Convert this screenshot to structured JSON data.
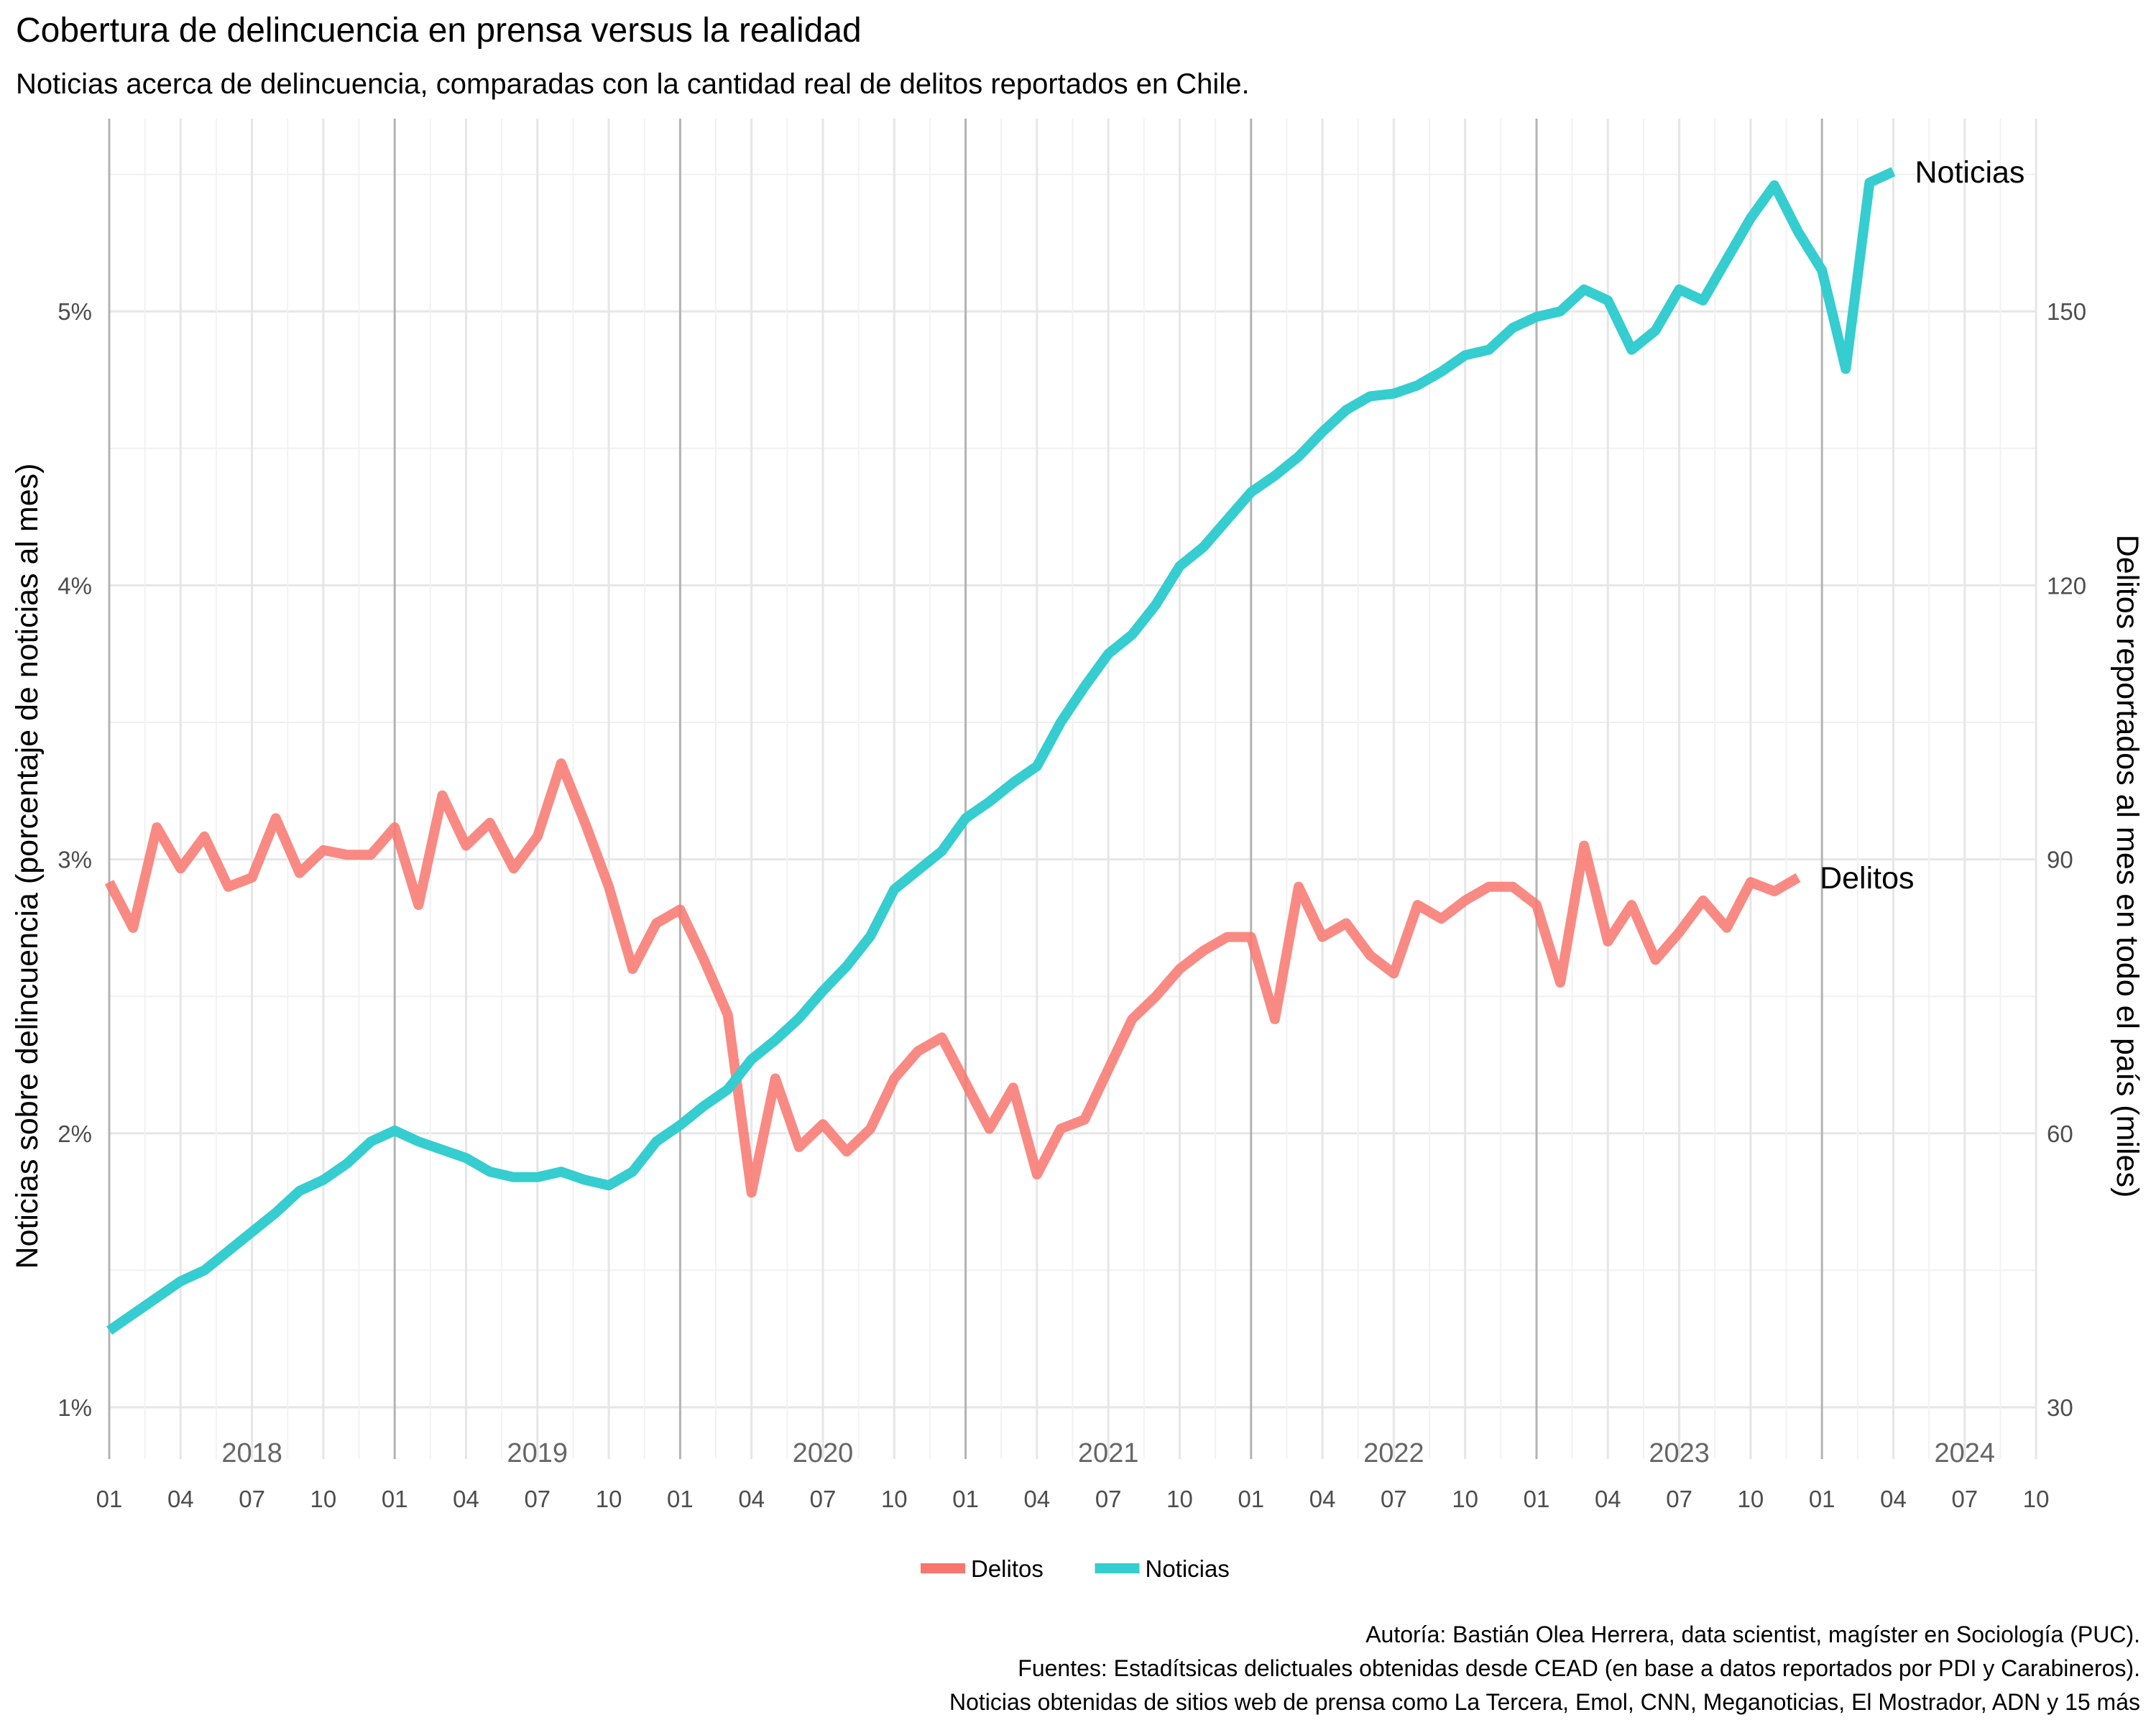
{
  "chart_data": {
    "type": "line",
    "title": "Cobertura de delincuencia en prensa versus la realidad",
    "subtitle": "Noticias acerca de delincuencia, comparadas con la cantidad real de delitos reportados en Chile.",
    "ylabel_left": "Noticias sobre delincuencia (porcentaje de noticias al mes)",
    "ylabel_right": "Delitos reportados al mes en todo el país (miles)",
    "ylim_left": [
      0.9,
      5.5
    ],
    "ylim_right": [
      30,
      165
    ],
    "yticks_left": [
      "1%",
      "2%",
      "3%",
      "4%",
      "5%"
    ],
    "yticks_right": [
      "30",
      "60",
      "90",
      "120",
      "150"
    ],
    "x_month_ticks": [
      "01",
      "04",
      "07",
      "10"
    ],
    "years": [
      "2018",
      "2019",
      "2020",
      "2021",
      "2022",
      "2023",
      "2024"
    ],
    "x_start": "2018-01",
    "x_end": "2024-10",
    "series": [
      {
        "name": "Noticias",
        "axis": "left",
        "color": "#35cdd0",
        "end_label": "Noticias",
        "points": [
          [
            "2018-01",
            1.28
          ],
          [
            "2018-02",
            1.34
          ],
          [
            "2018-03",
            1.4
          ],
          [
            "2018-04",
            1.46
          ],
          [
            "2018-05",
            1.5
          ],
          [
            "2018-06",
            1.57
          ],
          [
            "2018-07",
            1.64
          ],
          [
            "2018-08",
            1.71
          ],
          [
            "2018-09",
            1.79
          ],
          [
            "2018-10",
            1.83
          ],
          [
            "2018-11",
            1.89
          ],
          [
            "2018-12",
            1.97
          ],
          [
            "2019-01",
            2.01
          ],
          [
            "2019-02",
            1.97
          ],
          [
            "2019-03",
            1.94
          ],
          [
            "2019-04",
            1.91
          ],
          [
            "2019-05",
            1.86
          ],
          [
            "2019-06",
            1.84
          ],
          [
            "2019-07",
            1.84
          ],
          [
            "2019-08",
            1.86
          ],
          [
            "2019-09",
            1.83
          ],
          [
            "2019-10",
            1.81
          ],
          [
            "2019-11",
            1.86
          ],
          [
            "2019-12",
            1.97
          ],
          [
            "2020-01",
            2.03
          ],
          [
            "2020-02",
            2.1
          ],
          [
            "2020-03",
            2.16
          ],
          [
            "2020-04",
            2.27
          ],
          [
            "2020-05",
            2.34
          ],
          [
            "2020-06",
            2.42
          ],
          [
            "2020-07",
            2.52
          ],
          [
            "2020-08",
            2.61
          ],
          [
            "2020-09",
            2.72
          ],
          [
            "2020-10",
            2.89
          ],
          [
            "2020-11",
            2.96
          ],
          [
            "2020-12",
            3.03
          ],
          [
            "2021-01",
            3.15
          ],
          [
            "2021-02",
            3.21
          ],
          [
            "2021-03",
            3.28
          ],
          [
            "2021-04",
            3.34
          ],
          [
            "2021-05",
            3.5
          ],
          [
            "2021-06",
            3.63
          ],
          [
            "2021-07",
            3.75
          ],
          [
            "2021-08",
            3.82
          ],
          [
            "2021-09",
            3.93
          ],
          [
            "2021-10",
            4.07
          ],
          [
            "2021-11",
            4.14
          ],
          [
            "2021-12",
            4.24
          ],
          [
            "2022-01",
            4.34
          ],
          [
            "2022-02",
            4.4
          ],
          [
            "2022-03",
            4.47
          ],
          [
            "2022-04",
            4.56
          ],
          [
            "2022-05",
            4.64
          ],
          [
            "2022-06",
            4.69
          ],
          [
            "2022-07",
            4.7
          ],
          [
            "2022-08",
            4.73
          ],
          [
            "2022-09",
            4.78
          ],
          [
            "2022-10",
            4.84
          ],
          [
            "2022-11",
            4.86
          ],
          [
            "2022-12",
            4.94
          ],
          [
            "2023-01",
            4.98
          ],
          [
            "2023-02",
            5.0
          ],
          [
            "2023-03",
            5.08
          ],
          [
            "2023-04",
            5.04
          ],
          [
            "2023-05",
            4.86
          ],
          [
            "2023-06",
            4.93
          ],
          [
            "2023-07",
            5.08
          ],
          [
            "2023-08",
            5.04
          ],
          [
            "2023-09",
            5.19
          ],
          [
            "2023-10",
            5.34
          ],
          [
            "2023-11",
            5.46
          ],
          [
            "2023-12",
            5.29
          ],
          [
            "2024-01",
            5.15
          ],
          [
            "2024-02",
            4.79
          ],
          [
            "2024-03",
            5.47
          ],
          [
            "2024-04",
            5.51
          ]
        ]
      },
      {
        "name": "Delitos",
        "axis": "right",
        "color": "#f8766d",
        "end_label": "Delitos",
        "points": [
          [
            "2018-01",
            87.5
          ],
          [
            "2018-02",
            82.5
          ],
          [
            "2018-03",
            93.5
          ],
          [
            "2018-04",
            89.0
          ],
          [
            "2018-05",
            92.5
          ],
          [
            "2018-06",
            87.0
          ],
          [
            "2018-07",
            88.0
          ],
          [
            "2018-08",
            94.5
          ],
          [
            "2018-09",
            88.5
          ],
          [
            "2018-10",
            91.0
          ],
          [
            "2018-11",
            90.5
          ],
          [
            "2018-12",
            90.5
          ],
          [
            "2019-01",
            93.5
          ],
          [
            "2019-02",
            85.0
          ],
          [
            "2019-03",
            97.0
          ],
          [
            "2019-04",
            91.5
          ],
          [
            "2019-05",
            94.0
          ],
          [
            "2019-06",
            89.0
          ],
          [
            "2019-07",
            92.5
          ],
          [
            "2019-08",
            100.5
          ],
          [
            "2019-09",
            94.0
          ],
          [
            "2019-10",
            87.0
          ],
          [
            "2019-11",
            78.0
          ],
          [
            "2019-12",
            83.0
          ],
          [
            "2020-01",
            84.5
          ],
          [
            "2020-02",
            79.0
          ],
          [
            "2020-03",
            73.0
          ],
          [
            "2020-04",
            53.5
          ],
          [
            "2020-05",
            66.0
          ],
          [
            "2020-06",
            58.5
          ],
          [
            "2020-07",
            61.0
          ],
          [
            "2020-08",
            58.0
          ],
          [
            "2020-09",
            60.5
          ],
          [
            "2020-10",
            66.0
          ],
          [
            "2020-11",
            69.0
          ],
          [
            "2020-12",
            70.5
          ],
          [
            "2021-01",
            65.5
          ],
          [
            "2021-02",
            60.5
          ],
          [
            "2021-03",
            65.0
          ],
          [
            "2021-04",
            55.5
          ],
          [
            "2021-05",
            60.5
          ],
          [
            "2021-06",
            61.5
          ],
          [
            "2021-07",
            67.0
          ],
          [
            "2021-08",
            72.5
          ],
          [
            "2021-09",
            75.0
          ],
          [
            "2021-10",
            78.0
          ],
          [
            "2021-11",
            80.0
          ],
          [
            "2021-12",
            81.5
          ],
          [
            "2022-01",
            81.5
          ],
          [
            "2022-02",
            72.5
          ],
          [
            "2022-03",
            87.0
          ],
          [
            "2022-04",
            81.5
          ],
          [
            "2022-05",
            83.0
          ],
          [
            "2022-06",
            79.5
          ],
          [
            "2022-07",
            77.5
          ],
          [
            "2022-08",
            85.0
          ],
          [
            "2022-09",
            83.5
          ],
          [
            "2022-10",
            85.5
          ],
          [
            "2022-11",
            87.0
          ],
          [
            "2022-12",
            87.0
          ],
          [
            "2023-01",
            85.0
          ],
          [
            "2023-02",
            76.5
          ],
          [
            "2023-03",
            91.5
          ],
          [
            "2023-04",
            81.0
          ],
          [
            "2023-05",
            85.0
          ],
          [
            "2023-06",
            79.0
          ],
          [
            "2023-07",
            82.0
          ],
          [
            "2023-08",
            85.5
          ],
          [
            "2023-09",
            82.5
          ],
          [
            "2023-10",
            87.5
          ],
          [
            "2023-11",
            86.5
          ],
          [
            "2023-12",
            88.0
          ]
        ]
      }
    ],
    "legend": [
      {
        "label": "Delitos",
        "color": "#f8766d"
      },
      {
        "label": "Noticias",
        "color": "#35cdd0"
      }
    ],
    "legend_position": "bottom",
    "grid": true,
    "caption": [
      "Autoría: Bastián Olea Herrera, data scientist, magíster en Sociología (PUC).",
      "Fuentes: Estadítsicas delictuales obtenidas desde CEAD (en base a datos reportados por PDI y Carabineros).",
      "Noticias obtenidas de sitios web de prensa como La Tercera, Emol, CNN, Meganoticias, El Mostrador, ADN y 15 más"
    ]
  }
}
